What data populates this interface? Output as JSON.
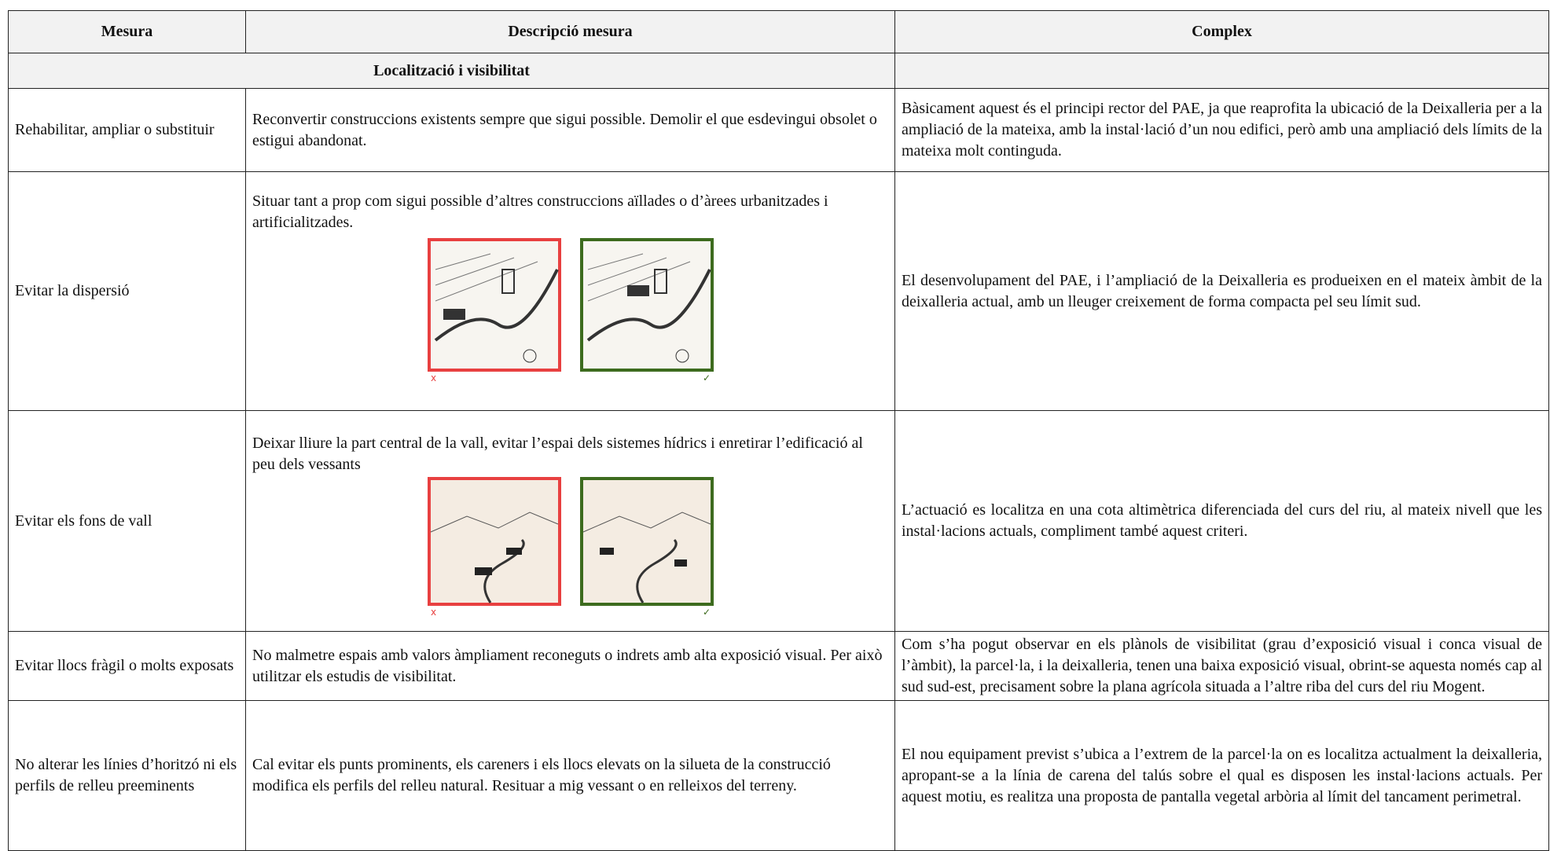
{
  "table": {
    "header": [
      "Mesura",
      "Descripció mesura",
      "Complex"
    ],
    "section": "Localització i visibilitat",
    "rows": [
      {
        "measure": "Rehabilitar, ampliar o substituir",
        "description": "Reconvertir construccions existents sempre que sigui possible. Demolir el que esdevingui obsolet o estigui abandonat.",
        "complex": "Bàsicament aquest és el principi rector del PAE, ja que reaprofita la ubicació de la Deixalleria per a la ampliació de la mateixa, amb la instal·lació d’un nou edifici, però amb una ampliació dels límits de la mateixa molt continguda."
      },
      {
        "measure": "Evitar la dispersió",
        "description": "Situar tant a prop com sigui possible d’altres construccions aïllades o d’àrees urbanitzades i artificialitzades.",
        "complex": "El desenvolupament del PAE, i l’ampliació de la Deixalleria es produeixen en el mateix àmbit de la deixalleria actual, amb un lleuger creixement de forma compacta pel seu límit sud."
      },
      {
        "measure": "Evitar els fons de vall",
        "description": "Deixar lliure la part central de la vall, evitar l’espai dels sistemes hídrics i enretirar l’edificació al peu dels vessants",
        "complex": "L’actuació es localitza en una cota altimètrica diferenciada del curs del riu, al mateix nivell que les instal·lacions actuals, compliment també aquest criteri."
      },
      {
        "measure": "Evitar llocs fràgil o molts exposats",
        "description": "No malmetre espais amb valors àmpliament reconeguts o indrets amb alta exposició visual. Per això utilitzar els estudis de visibilitat.",
        "complex": "Com s’ha pogut observar en els plànols de visibilitat (grau d’exposició visual i conca visual de l’àmbit), la parcel·la, i la deixalleria, tenen una baixa exposició visual, obrint-se aquesta només cap al sud sud-est, precisament sobre la plana agrícola situada a l’altre riba del curs del riu Mogent."
      },
      {
        "measure": "No alterar les línies d’horitzó ni els perfils de relleu preeminents",
        "description": "Cal evitar els punts prominents, els careners i els llocs elevats on la silueta de la construcció modifica els perfils del relleu natural. Resituar a mig vessant o en relleixos del terreny.",
        "complex": "El nou equipament previst s’ubica a l’extrem de la parcel·la on es localitza actualment la deixalleria, apropant-se a la línia de carena del talús sobre el qual es disposen les instal·lacions actuals. Per aquest motiu, es realitza una proposta de pantalla vegetal arbòria al límit del tancament perimetral."
      }
    ]
  }
}
